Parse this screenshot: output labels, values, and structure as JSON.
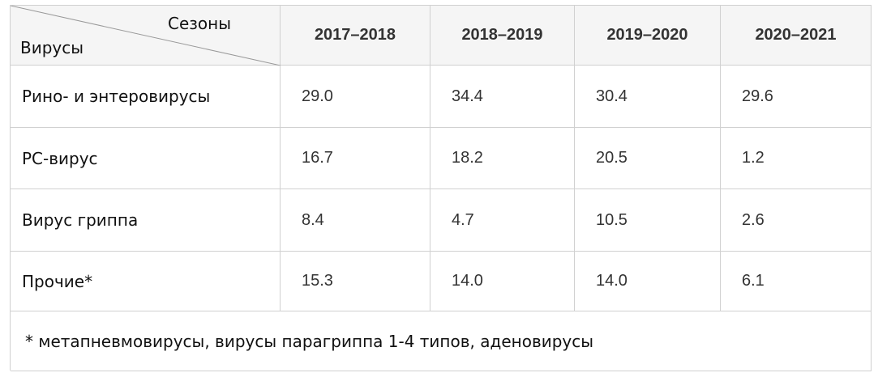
{
  "table": {
    "corner": {
      "top": "Сезоны",
      "bottom": "Вирусы"
    },
    "columns": [
      "2017–2018",
      "2018–2019",
      "2019–2020",
      "2020–2021"
    ],
    "rows": [
      {
        "label": "Рино- и энтеровирусы",
        "values": [
          "29.0",
          "34.4",
          "30.4",
          "29.6"
        ]
      },
      {
        "label": "РС-вирус",
        "values": [
          "16.7",
          "18.2",
          "20.5",
          "1.2"
        ]
      },
      {
        "label": "Вирус гриппа",
        "values": [
          "8.4",
          "4.7",
          "10.5",
          "2.6"
        ]
      },
      {
        "label": "Прочие*",
        "values": [
          "15.3",
          "14.0",
          "14.0",
          "6.1"
        ]
      }
    ],
    "footnote": "* метапневмовирусы, вирусы парагриппа 1-4 типов, аденовирусы"
  }
}
